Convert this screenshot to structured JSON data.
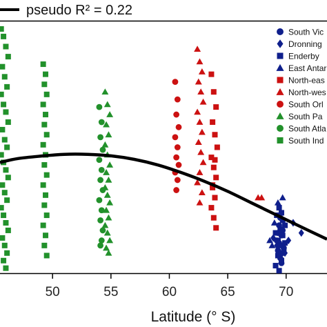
{
  "chart_data": {
    "type": "scatter",
    "title": "",
    "xlabel": "Latitude (° S)",
    "ylabel": "",
    "x_ticks": [
      50,
      55,
      60,
      65,
      70
    ],
    "xlim": [
      45.5,
      73.5
    ],
    "ylim": [
      0,
      1
    ],
    "grid": false,
    "legend_position": "top-right",
    "fit": {
      "label": "pseudo R² = 0.22",
      "color": "#000000",
      "x": [
        45.5,
        47,
        49,
        51,
        53,
        55,
        57,
        59,
        61,
        63,
        65,
        67,
        69,
        71,
        73.5
      ],
      "y": [
        0.44,
        0.455,
        0.465,
        0.472,
        0.472,
        0.466,
        0.452,
        0.43,
        0.4,
        0.365,
        0.325,
        0.28,
        0.235,
        0.19,
        0.135
      ]
    },
    "series": [
      {
        "name": "South Vic",
        "marker": "circle",
        "color": "#0f1f8c",
        "x": [
          69.4,
          69.6,
          69.3,
          69.7,
          69.5,
          69.2,
          69.8,
          69.4,
          69.6,
          69.5,
          69.3,
          69.7
        ],
        "y": [
          0.12,
          0.15,
          0.09,
          0.17,
          0.06,
          0.13,
          0.1,
          0.19,
          0.04,
          0.22,
          0.16,
          0.08
        ]
      },
      {
        "name": "Dronning",
        "marker": "diamond",
        "color": "#0f1f8c",
        "x": [
          68.9,
          69.2,
          69.5,
          70.2,
          71.3,
          69.9,
          70.6
        ],
        "y": [
          0.14,
          0.11,
          0.18,
          0.13,
          0.16,
          0.08,
          0.2
        ]
      },
      {
        "name": "Enderby",
        "marker": "square",
        "color": "#0f1f8c",
        "x": [
          69.1,
          69.3,
          69.5,
          69.7,
          69.9,
          69.2,
          69.4,
          69.6,
          69.8,
          69.3,
          69.5,
          69.7,
          69.1,
          69.9,
          69.4,
          69.6
        ],
        "y": [
          0.03,
          0.07,
          0.11,
          0.15,
          0.19,
          0.23,
          0.26,
          0.05,
          0.09,
          0.13,
          0.17,
          0.21,
          0.16,
          0.12,
          0.01,
          0.24
        ]
      },
      {
        "name": "East Antar",
        "marker": "triangle",
        "color": "#0f1f8c",
        "x": [
          68.6,
          69.0,
          69.3,
          69.7,
          68.8
        ],
        "y": [
          0.13,
          0.2,
          0.28,
          0.3,
          0.11
        ]
      },
      {
        "name": "North-eas",
        "marker": "square",
        "color": "#cc1111",
        "x": [
          63.6,
          63.8,
          64.0,
          63.7,
          63.9,
          64.1,
          63.6,
          63.8,
          64.0,
          63.7,
          63.9,
          63.6,
          63.8,
          64.0,
          63.7,
          63.9
        ],
        "y": [
          0.79,
          0.72,
          0.66,
          0.6,
          0.55,
          0.5,
          0.46,
          0.42,
          0.38,
          0.34,
          0.3,
          0.26,
          0.22,
          0.18,
          0.35,
          0.45
        ]
      },
      {
        "name": "North-wes",
        "marker": "triangle",
        "color": "#cc1111",
        "x": [
          62.4,
          62.6,
          62.8,
          62.5,
          62.7,
          62.9,
          62.4,
          62.6,
          62.8,
          62.5,
          62.7,
          62.9,
          62.6,
          62.4,
          62.8,
          62.6,
          67.6,
          67.9
        ],
        "y": [
          0.89,
          0.84,
          0.8,
          0.76,
          0.72,
          0.68,
          0.64,
          0.6,
          0.56,
          0.52,
          0.48,
          0.44,
          0.4,
          0.36,
          0.32,
          0.28,
          0.3,
          0.3
        ]
      },
      {
        "name": "South Orl",
        "marker": "circle",
        "color": "#cc1111",
        "x": [
          60.5,
          60.7,
          60.6,
          60.8,
          60.5,
          60.7,
          60.6,
          60.8,
          60.5,
          60.7,
          60.6
        ],
        "y": [
          0.76,
          0.69,
          0.63,
          0.58,
          0.54,
          0.5,
          0.46,
          0.43,
          0.4,
          0.37,
          0.33
        ]
      },
      {
        "name": "South Pa",
        "marker": "triangle",
        "color": "#22912b",
        "x": [
          54.5,
          54.7,
          54.9,
          54.6,
          54.8,
          54.5,
          54.7,
          54.9,
          54.6,
          54.8,
          54.5,
          54.7,
          54.9,
          54.6,
          54.8,
          54.5,
          54.7,
          54.9,
          54.6,
          54.8
        ],
        "y": [
          0.72,
          0.67,
          0.63,
          0.59,
          0.55,
          0.51,
          0.47,
          0.43,
          0.4,
          0.37,
          0.34,
          0.31,
          0.28,
          0.25,
          0.22,
          0.19,
          0.16,
          0.13,
          0.1,
          0.08
        ]
      },
      {
        "name": "South Atla",
        "marker": "circle",
        "color": "#22912b",
        "x": [
          54.0,
          54.2,
          54.1,
          54.3,
          54.0,
          54.2,
          54.1,
          54.3,
          54.0,
          54.2,
          54.1,
          54.3,
          54.2,
          54.1
        ],
        "y": [
          0.66,
          0.6,
          0.54,
          0.49,
          0.45,
          0.41,
          0.37,
          0.33,
          0.29,
          0.25,
          0.21,
          0.17,
          0.13,
          0.11
        ]
      },
      {
        "name": "South Ind",
        "marker": "square",
        "color": "#22912b",
        "x": [
          45.6,
          45.8,
          46.0,
          46.2,
          45.7,
          45.9,
          46.1,
          45.6,
          45.8,
          46.0,
          46.2,
          45.7,
          45.9,
          46.1,
          45.6,
          45.8,
          46.0,
          46.2,
          45.7,
          45.9,
          46.1,
          45.6,
          45.8,
          46.0,
          46.2,
          45.7,
          45.9,
          46.1,
          45.8,
          46.0,
          49.2,
          49.4,
          49.3,
          49.5,
          49.2,
          49.4,
          49.3,
          49.5,
          49.2,
          49.4,
          49.3,
          49.5,
          49.2,
          49.4,
          49.3,
          49.5,
          49.2,
          49.4,
          49.3,
          49.5
        ],
        "y": [
          0.97,
          0.94,
          0.9,
          0.86,
          0.82,
          0.78,
          0.74,
          0.71,
          0.67,
          0.64,
          0.6,
          0.57,
          0.53,
          0.5,
          0.47,
          0.44,
          0.41,
          0.38,
          0.35,
          0.32,
          0.29,
          0.26,
          0.23,
          0.2,
          0.17,
          0.14,
          0.11,
          0.08,
          0.05,
          0.02,
          0.83,
          0.79,
          0.75,
          0.71,
          0.67,
          0.63,
          0.59,
          0.55,
          0.51,
          0.47,
          0.43,
          0.39,
          0.35,
          0.31,
          0.27,
          0.23,
          0.19,
          0.15,
          0.11,
          0.07
        ]
      }
    ]
  }
}
